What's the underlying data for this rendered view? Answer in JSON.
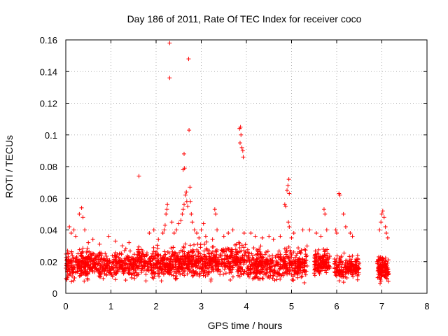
{
  "chart_data": {
    "type": "scatter",
    "title": "Day 186 of 2011, Rate Of TEC Index for receiver coco",
    "xlabel": "GPS time / hours",
    "ylabel": "ROTI / TECUs",
    "xlim": [
      0,
      8
    ],
    "ylim": [
      0,
      0.16
    ],
    "xticks": [
      0,
      1,
      2,
      3,
      4,
      5,
      6,
      7,
      8
    ],
    "yticks": [
      0,
      0.02,
      0.04,
      0.06,
      0.08,
      0.1,
      0.12,
      0.14,
      0.16
    ],
    "xtick_labels": [
      "0",
      "1",
      "2",
      "3",
      "4",
      "5",
      "6",
      "7",
      "8"
    ],
    "ytick_labels": [
      "0",
      "0.02",
      "0.04",
      "0.06",
      "0.08",
      "0.1",
      "0.12",
      "0.14",
      "0.16"
    ],
    "grid": true,
    "marker": "plus",
    "color": "#ff0000",
    "dense_segments": [
      {
        "x_start": 0.0,
        "x_end": 1.5,
        "y_min": 0.005,
        "y_max": 0.03,
        "count": 500
      },
      {
        "x_start": 1.5,
        "x_end": 2.6,
        "y_min": 0.006,
        "y_max": 0.032,
        "count": 380
      },
      {
        "x_start": 2.6,
        "x_end": 4.0,
        "y_min": 0.006,
        "y_max": 0.034,
        "count": 480
      },
      {
        "x_start": 4.0,
        "x_end": 5.35,
        "y_min": 0.005,
        "y_max": 0.032,
        "count": 460
      },
      {
        "x_start": 5.5,
        "x_end": 5.85,
        "y_min": 0.008,
        "y_max": 0.03,
        "count": 150
      },
      {
        "x_start": 5.95,
        "x_end": 6.5,
        "y_min": 0.006,
        "y_max": 0.026,
        "count": 200
      },
      {
        "x_start": 6.9,
        "x_end": 7.15,
        "y_min": 0.005,
        "y_max": 0.025,
        "count": 140
      }
    ],
    "extra_points": [
      [
        0.08,
        0.042
      ],
      [
        0.12,
        0.038
      ],
      [
        0.18,
        0.04
      ],
      [
        0.22,
        0.036
      ],
      [
        0.3,
        0.05
      ],
      [
        0.35,
        0.054
      ],
      [
        0.38,
        0.048
      ],
      [
        0.42,
        0.04
      ],
      [
        0.5,
        0.032
      ],
      [
        0.6,
        0.034
      ],
      [
        0.75,
        0.031
      ],
      [
        0.95,
        0.036
      ],
      [
        1.1,
        0.033
      ],
      [
        1.25,
        0.03
      ],
      [
        1.4,
        0.032
      ],
      [
        1.62,
        0.074
      ],
      [
        1.85,
        0.038
      ],
      [
        1.95,
        0.04
      ],
      [
        2.05,
        0.034
      ],
      [
        2.15,
        0.038
      ],
      [
        2.18,
        0.04
      ],
      [
        2.2,
        0.043
      ],
      [
        2.22,
        0.05
      ],
      [
        2.24,
        0.053
      ],
      [
        2.25,
        0.056
      ],
      [
        2.3,
        0.158
      ],
      [
        2.3,
        0.136
      ],
      [
        2.35,
        0.045
      ],
      [
        2.4,
        0.038
      ],
      [
        2.45,
        0.04
      ],
      [
        2.5,
        0.044
      ],
      [
        2.55,
        0.046
      ],
      [
        2.58,
        0.05
      ],
      [
        2.6,
        0.053
      ],
      [
        2.62,
        0.056
      ],
      [
        2.6,
        0.078
      ],
      [
        2.62,
        0.088
      ],
      [
        2.63,
        0.079
      ],
      [
        2.65,
        0.062
      ],
      [
        2.67,
        0.064
      ],
      [
        2.68,
        0.058
      ],
      [
        2.7,
        0.055
      ],
      [
        2.72,
        0.148
      ],
      [
        2.73,
        0.103
      ],
      [
        2.75,
        0.067
      ],
      [
        2.76,
        0.058
      ],
      [
        2.78,
        0.05
      ],
      [
        2.8,
        0.045
      ],
      [
        2.85,
        0.04
      ],
      [
        2.9,
        0.038
      ],
      [
        2.95,
        0.035
      ],
      [
        3.0,
        0.04
      ],
      [
        3.05,
        0.044
      ],
      [
        3.1,
        0.036
      ],
      [
        3.25,
        0.034
      ],
      [
        3.3,
        0.053
      ],
      [
        3.32,
        0.05
      ],
      [
        3.35,
        0.04
      ],
      [
        3.5,
        0.036
      ],
      [
        3.6,
        0.038
      ],
      [
        3.7,
        0.04
      ],
      [
        3.85,
        0.104
      ],
      [
        3.87,
        0.105
      ],
      [
        3.88,
        0.1
      ],
      [
        3.9,
        0.092
      ],
      [
        3.92,
        0.09
      ],
      [
        3.93,
        0.086
      ],
      [
        3.86,
        0.095
      ],
      [
        3.95,
        0.038
      ],
      [
        4.1,
        0.038
      ],
      [
        4.2,
        0.036
      ],
      [
        4.35,
        0.035
      ],
      [
        4.5,
        0.036
      ],
      [
        4.6,
        0.034
      ],
      [
        4.75,
        0.036
      ],
      [
        4.85,
        0.056
      ],
      [
        4.87,
        0.055
      ],
      [
        4.9,
        0.065
      ],
      [
        4.92,
        0.068
      ],
      [
        4.94,
        0.072
      ],
      [
        4.95,
        0.063
      ],
      [
        4.93,
        0.045
      ],
      [
        4.95,
        0.042
      ],
      [
        5.0,
        0.035
      ],
      [
        5.05,
        0.038
      ],
      [
        5.25,
        0.04
      ],
      [
        5.4,
        0.04
      ],
      [
        5.55,
        0.038
      ],
      [
        5.65,
        0.036
      ],
      [
        5.72,
        0.053
      ],
      [
        5.74,
        0.05
      ],
      [
        5.78,
        0.04
      ],
      [
        5.98,
        0.04
      ],
      [
        6.0,
        0.038
      ],
      [
        6.05,
        0.063
      ],
      [
        6.07,
        0.062
      ],
      [
        6.15,
        0.05
      ],
      [
        6.2,
        0.042
      ],
      [
        6.3,
        0.038
      ],
      [
        6.35,
        0.036
      ],
      [
        6.95,
        0.04
      ],
      [
        6.98,
        0.045
      ],
      [
        7.0,
        0.05
      ],
      [
        7.02,
        0.052
      ],
      [
        7.05,
        0.048
      ],
      [
        7.08,
        0.042
      ],
      [
        7.1,
        0.038
      ],
      [
        7.13,
        0.035
      ]
    ]
  }
}
